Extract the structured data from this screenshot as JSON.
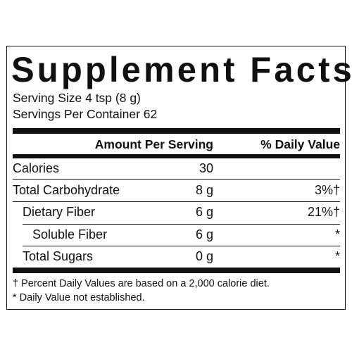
{
  "title": "Supplement Facts",
  "serving_size": "Serving Size 4 tsp (8 g)",
  "servings_per_container": "Servings Per Container 62",
  "table": {
    "header": [
      "Amount Per Serving",
      "% Daily Value"
    ],
    "rows": [
      {
        "name": "Calories",
        "amount": "30"
      },
      {
        "name": "Total Carbohydrate",
        "amount": "8 g",
        "daily_value": "3%†"
      },
      {
        "name": "Dietary Fiber",
        "amount": "6 g",
        "daily_value": "21%†"
      },
      {
        "name": "Soluble Fiber",
        "amount": "6 g",
        "daily_value": "*"
      },
      {
        "name": "Total Sugars",
        "amount": "0 g",
        "daily_value": "*"
      }
    ]
  },
  "footnotes": [
    "† Percent Daily Values are based on a 2,000 calorie diet.",
    "* Daily Value not established."
  ]
}
